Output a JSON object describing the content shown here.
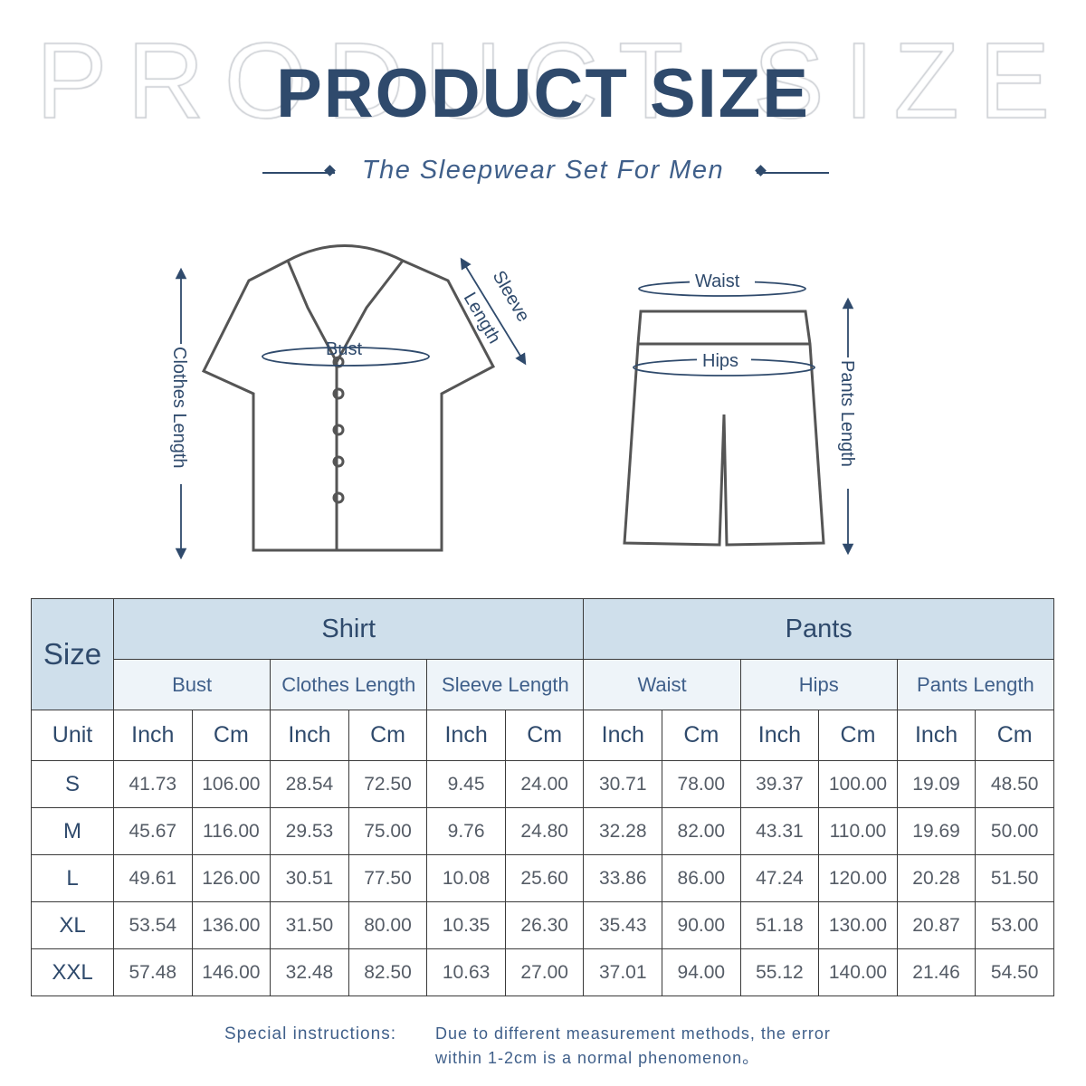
{
  "header": {
    "ghost_text": "PRODUCT SIZE",
    "title": "PRODUCT SIZE",
    "subtitle": "The Sleepwear Set For Men"
  },
  "illustration": {
    "shirt": {
      "clothes_length": "Clothes Length",
      "bust": "Bust",
      "sleeve_length_1": "Sleeve",
      "sleeve_length_2": "Length"
    },
    "pants": {
      "waist": "Waist",
      "hips": "Hips",
      "pants_length": "Pants  Length"
    }
  },
  "table": {
    "size_label": "Size",
    "unit_label": "Unit",
    "groups": [
      "Shirt",
      "Pants"
    ],
    "measures": [
      "Bust",
      "Clothes Length",
      "Sleeve Length",
      "Waist",
      "Hips",
      "Pants Length"
    ],
    "units": [
      "Inch",
      "Cm",
      "Inch",
      "Cm",
      "Inch",
      "Cm",
      "Inch",
      "Cm",
      "Inch",
      "Cm",
      "Inch",
      "Cm"
    ],
    "rows": [
      {
        "size": "S",
        "values": [
          "41.73",
          "106.00",
          "28.54",
          "72.50",
          "9.45",
          "24.00",
          "30.71",
          "78.00",
          "39.37",
          "100.00",
          "19.09",
          "48.50"
        ]
      },
      {
        "size": "M",
        "values": [
          "45.67",
          "116.00",
          "29.53",
          "75.00",
          "9.76",
          "24.80",
          "32.28",
          "82.00",
          "43.31",
          "110.00",
          "19.69",
          "50.00"
        ]
      },
      {
        "size": "L",
        "values": [
          "49.61",
          "126.00",
          "30.51",
          "77.50",
          "10.08",
          "25.60",
          "33.86",
          "86.00",
          "47.24",
          "120.00",
          "20.28",
          "51.50"
        ]
      },
      {
        "size": "XL",
        "values": [
          "53.54",
          "136.00",
          "31.50",
          "80.00",
          "10.35",
          "26.30",
          "35.43",
          "90.00",
          "51.18",
          "130.00",
          "20.87",
          "53.00"
        ]
      },
      {
        "size": "XXL",
        "values": [
          "57.48",
          "146.00",
          "32.48",
          "82.50",
          "10.63",
          "27.00",
          "37.01",
          "94.00",
          "55.12",
          "140.00",
          "21.46",
          "54.50"
        ]
      }
    ]
  },
  "footer": {
    "label": "Special instructions:",
    "line1": "Due to different measurement methods, the error",
    "line2": "within 1-2cm is a normal phenomenon。"
  },
  "colors": {
    "navy": "#2f4a6c",
    "header_bg": "#cfdfeb",
    "subheader_bg": "#eef4f9"
  }
}
